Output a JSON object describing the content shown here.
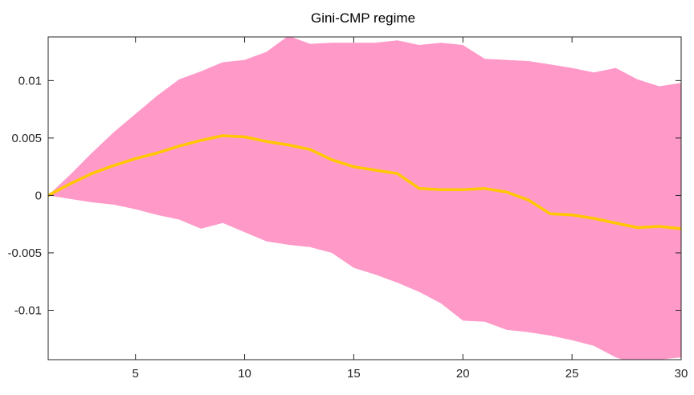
{
  "chart_data": {
    "type": "area",
    "title": "Gini-CMP regime",
    "xlabel": "",
    "ylabel": "",
    "xlim": [
      1,
      30
    ],
    "ylim": [
      -0.0143,
      0.0138
    ],
    "x_ticks": [
      5,
      10,
      15,
      20,
      25,
      30
    ],
    "y_ticks": [
      -0.01,
      -0.005,
      0,
      0.005,
      0.01
    ],
    "x_tick_labels": [
      "5",
      "10",
      "15",
      "20",
      "25",
      "30"
    ],
    "y_tick_labels": [
      "-0.01",
      "-0.005",
      "0",
      "0.005",
      "0.01"
    ],
    "grid": false,
    "colors": {
      "band": "#ff99c8",
      "line": "#ffc800",
      "axis": "#262626"
    },
    "x": [
      1,
      2,
      3,
      4,
      5,
      6,
      7,
      8,
      9,
      10,
      11,
      12,
      13,
      14,
      15,
      16,
      17,
      18,
      19,
      20,
      21,
      22,
      23,
      24,
      25,
      26,
      27,
      28,
      29,
      30
    ],
    "series": [
      {
        "role": "upper_bound",
        "values": [
          0,
          0.0018,
          0.0037,
          0.0055,
          0.0071,
          0.0087,
          0.0101,
          0.0108,
          0.0116,
          0.0118,
          0.0125,
          0.0139,
          0.0132,
          0.0133,
          0.0133,
          0.0133,
          0.0135,
          0.0131,
          0.0133,
          0.0131,
          0.0119,
          0.0118,
          0.0117,
          0.0114,
          0.0111,
          0.0107,
          0.0111,
          0.0101,
          0.0095,
          0.0098
        ]
      },
      {
        "role": "median",
        "values": [
          0,
          0.001,
          0.0019,
          0.0026,
          0.0032,
          0.0037,
          0.0043,
          0.0048,
          0.0052,
          0.0051,
          0.0047,
          0.0044,
          0.004,
          0.0031,
          0.0025,
          0.0022,
          0.0019,
          0.0006,
          0.0005,
          0.0005,
          0.0006,
          0.0003,
          -0.0004,
          -0.0016,
          -0.0017,
          -0.002,
          -0.0024,
          -0.0028,
          -0.0027,
          -0.0029
        ]
      },
      {
        "role": "lower_bound",
        "values": [
          0,
          -0.0003,
          -0.0006,
          -0.0008,
          -0.0012,
          -0.0017,
          -0.0021,
          -0.0029,
          -0.0024,
          -0.0032,
          -0.004,
          -0.0043,
          -0.0045,
          -0.005,
          -0.0063,
          -0.0069,
          -0.0076,
          -0.0084,
          -0.0094,
          -0.0109,
          -0.011,
          -0.0117,
          -0.0119,
          -0.0122,
          -0.0126,
          -0.0131,
          -0.0141,
          -0.0147,
          -0.0143,
          -0.0141
        ]
      }
    ]
  }
}
